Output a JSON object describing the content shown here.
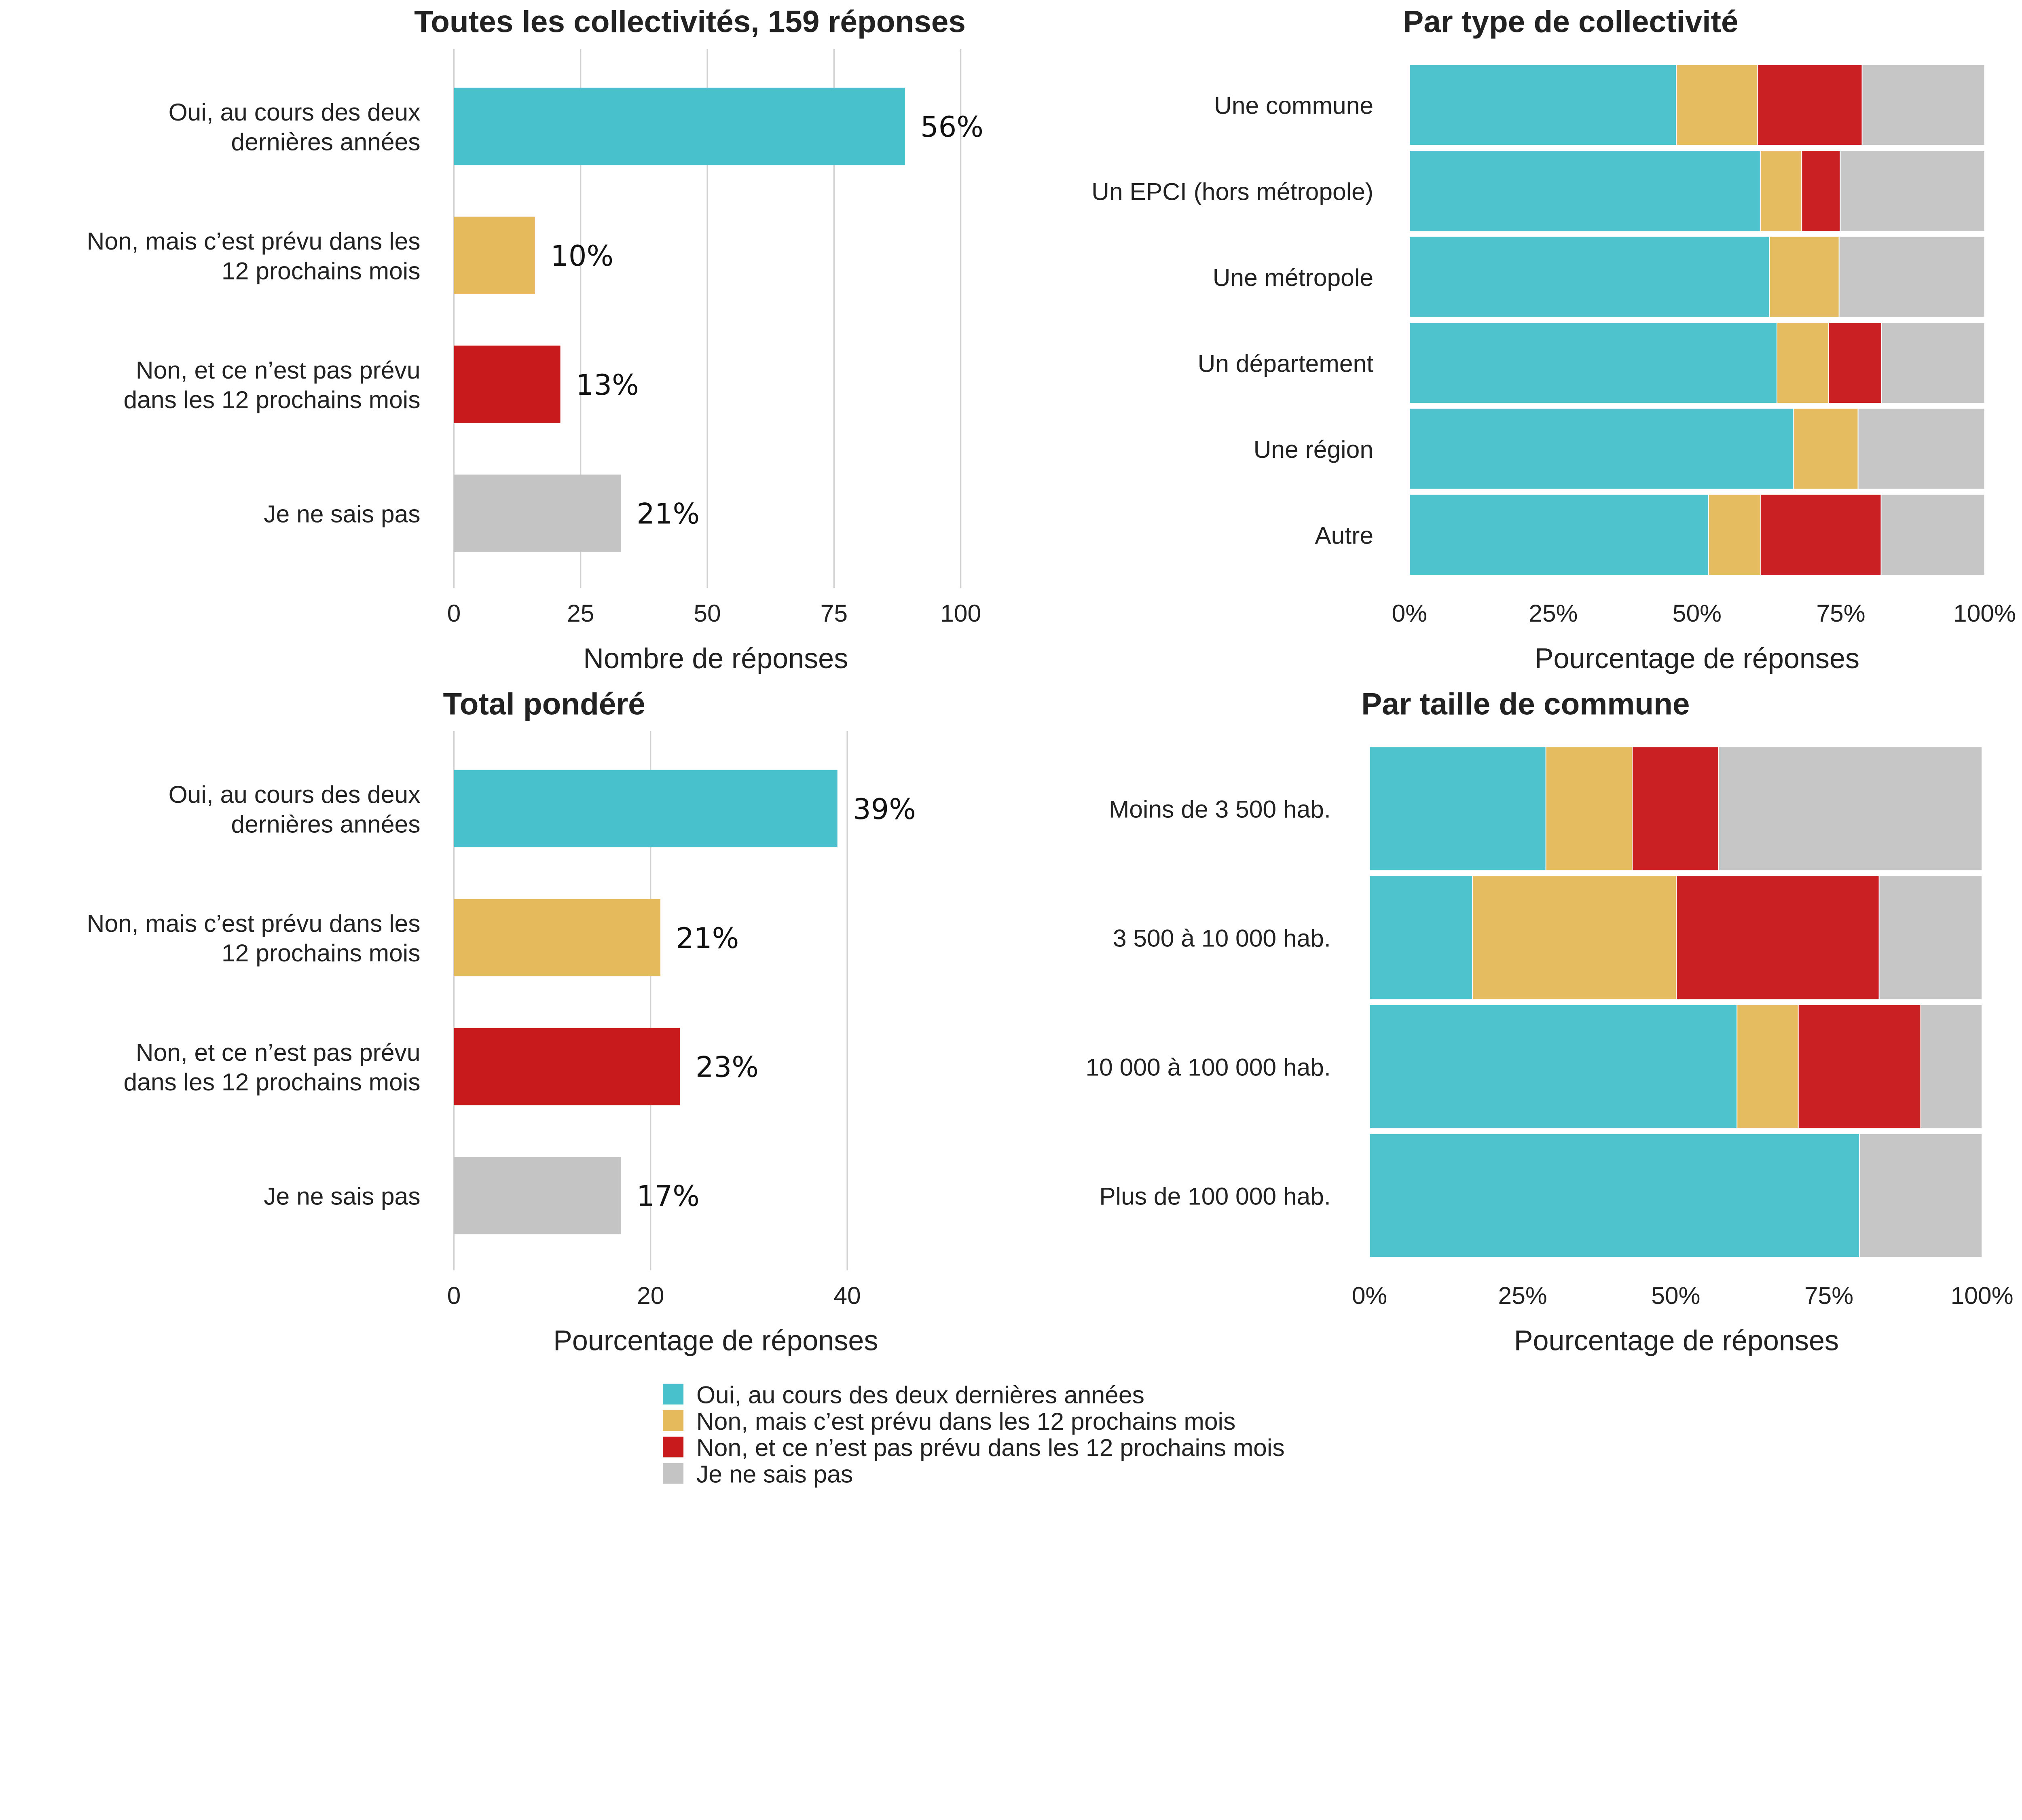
{
  "colors": {
    "oui": "#48C1CC",
    "prevu": "#E5BA5C",
    "non": "#C8191C",
    "nsp": "#C4C4C4"
  },
  "legend": [
    "Oui, au cours des deux dernières années",
    "Non, mais c’est prévu dans les 12 prochains mois",
    "Non, et ce n’est pas prévu dans les 12 prochains mois",
    "Je ne sais pas"
  ],
  "chart_data": [
    {
      "type": "bar",
      "orientation": "horizontal",
      "title": "Toutes les collectivités, 159 réponses",
      "xlabel": "Nombre de réponses",
      "xlim": [
        0,
        100
      ],
      "xticks": [
        "0",
        "25",
        "50",
        "75",
        "100"
      ],
      "grid": true,
      "categories": [
        [
          "Oui, au cours des deux",
          "dernières années"
        ],
        [
          "Non, mais c’est prévu dans les",
          "12 prochains mois"
        ],
        [
          "Non, et ce n’est pas prévu",
          "dans les 12 prochains mois"
        ],
        [
          "Je ne sais pas"
        ]
      ],
      "values": [
        89,
        16,
        21,
        33
      ],
      "data_labels": [
        "56%",
        "10%",
        "13%",
        "21%"
      ]
    },
    {
      "type": "bar",
      "orientation": "horizontal",
      "stacked": true,
      "title": "Par type de collectivité",
      "xlabel": "Pourcentage de réponses",
      "xlim": [
        0,
        100
      ],
      "xticks": [
        "0%",
        "25%",
        "50%",
        "75%",
        "100%"
      ],
      "grid": false,
      "categories": [
        "Une commune",
        "Un EPCI (hors métropole)",
        "Une métropole",
        "Un département",
        "Une région",
        "Autre"
      ],
      "series": [
        {
          "name": "Oui, au cours des deux dernières années",
          "values": [
            46.4,
            61,
            62.6,
            63.9,
            66.8,
            52
          ]
        },
        {
          "name": "Non, mais c’est prévu dans les 12 prochains mois",
          "values": [
            14.1,
            7.2,
            12.1,
            9,
            11.2,
            9
          ]
        },
        {
          "name": "Non, et ce n’est pas prévu dans les 12 prochains mois",
          "values": [
            18.2,
            6.7,
            0,
            9.2,
            0,
            21
          ]
        },
        {
          "name": "Je ne sais pas",
          "values": [
            21.3,
            25.1,
            25.3,
            17.9,
            22,
            18
          ]
        }
      ]
    },
    {
      "type": "bar",
      "orientation": "horizontal",
      "title": "Total pondéré",
      "xlabel": "Pourcentage de réponses",
      "xlim": [
        0,
        46
      ],
      "xticks": [
        "0",
        "20",
        "40"
      ],
      "grid": true,
      "categories": [
        [
          "Oui, au cours des deux",
          "dernières années"
        ],
        [
          "Non, mais c’est prévu dans les",
          "12 prochains mois"
        ],
        [
          "Non, et ce n’est pas prévu",
          "dans les 12 prochains mois"
        ],
        [
          "Je ne sais pas"
        ]
      ],
      "values": [
        39,
        21,
        23,
        17
      ],
      "data_labels": [
        "39%",
        "21%",
        "23%",
        "17%"
      ]
    },
    {
      "type": "bar",
      "orientation": "horizontal",
      "stacked": true,
      "title": "Par taille de commune",
      "xlabel": "Pourcentage de réponses",
      "xlim": [
        0,
        100
      ],
      "xticks": [
        "0%",
        "25%",
        "50%",
        "75%",
        "100%"
      ],
      "grid": false,
      "categories": [
        "Moins de 3 500 hab.",
        "3 500 à 10 000 hab.",
        "10 000 à 100 000 hab.",
        "Plus de 100 000 hab."
      ],
      "series": [
        {
          "name": "Oui, au cours des deux dernières années",
          "values": [
            28.8,
            16.8,
            60,
            80
          ]
        },
        {
          "name": "Non, mais c’est prévu dans les 12 prochains mois",
          "values": [
            14.1,
            33.3,
            10,
            0
          ]
        },
        {
          "name": "Non, et ce n’est pas prévu dans les 12 prochains mois",
          "values": [
            14.1,
            33.1,
            20,
            0
          ]
        },
        {
          "name": "Je ne sais pas",
          "values": [
            43,
            16.8,
            10,
            20
          ]
        }
      ]
    }
  ]
}
